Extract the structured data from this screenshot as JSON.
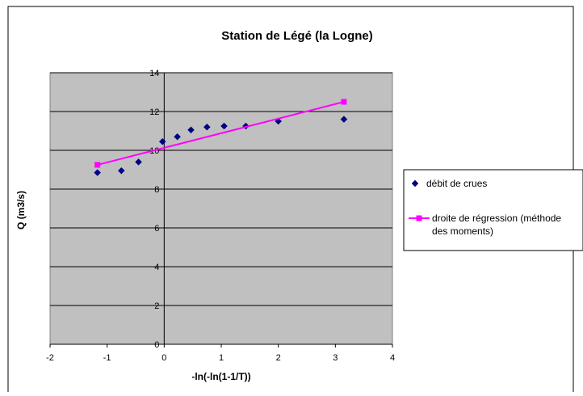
{
  "chart_data": {
    "type": "scatter",
    "title": "Station de Légé (la Logne)",
    "xlabel": "-ln(-ln(1-1/T))",
    "ylabel": "Q (m3/s)",
    "xlim": [
      -2,
      4
    ],
    "ylim": [
      0,
      14
    ],
    "x_ticks": [
      "-2",
      "-1",
      "0",
      "1",
      "2",
      "3",
      "4"
    ],
    "y_ticks": [
      "0",
      "2",
      "4",
      "6",
      "8",
      "10",
      "12",
      "14"
    ],
    "grid": "horizontal",
    "plot_background": "#c0c0c0",
    "legend_position": "right",
    "series": [
      {
        "name": "débit de crues",
        "kind": "scatter",
        "marker": "diamond",
        "color": "#000080",
        "points": [
          {
            "x": -1.17,
            "y": 8.85
          },
          {
            "x": -0.75,
            "y": 8.95
          },
          {
            "x": -0.45,
            "y": 9.4
          },
          {
            "x": -0.03,
            "y": 10.45
          },
          {
            "x": 0.23,
            "y": 10.7
          },
          {
            "x": 0.47,
            "y": 11.05
          },
          {
            "x": 0.75,
            "y": 11.2
          },
          {
            "x": 1.05,
            "y": 11.25
          },
          {
            "x": 1.43,
            "y": 11.25
          },
          {
            "x": 2.0,
            "y": 11.5
          },
          {
            "x": 3.15,
            "y": 11.6
          }
        ]
      },
      {
        "name": "droite de régression (méthode des moments)",
        "legend_lines": [
          "droite de régression (méthode",
          "des moments)"
        ],
        "kind": "line",
        "marker": "square",
        "color": "#ff00ff",
        "points": [
          {
            "x": -1.17,
            "y": 9.25
          },
          {
            "x": 3.15,
            "y": 12.5
          }
        ]
      }
    ]
  }
}
